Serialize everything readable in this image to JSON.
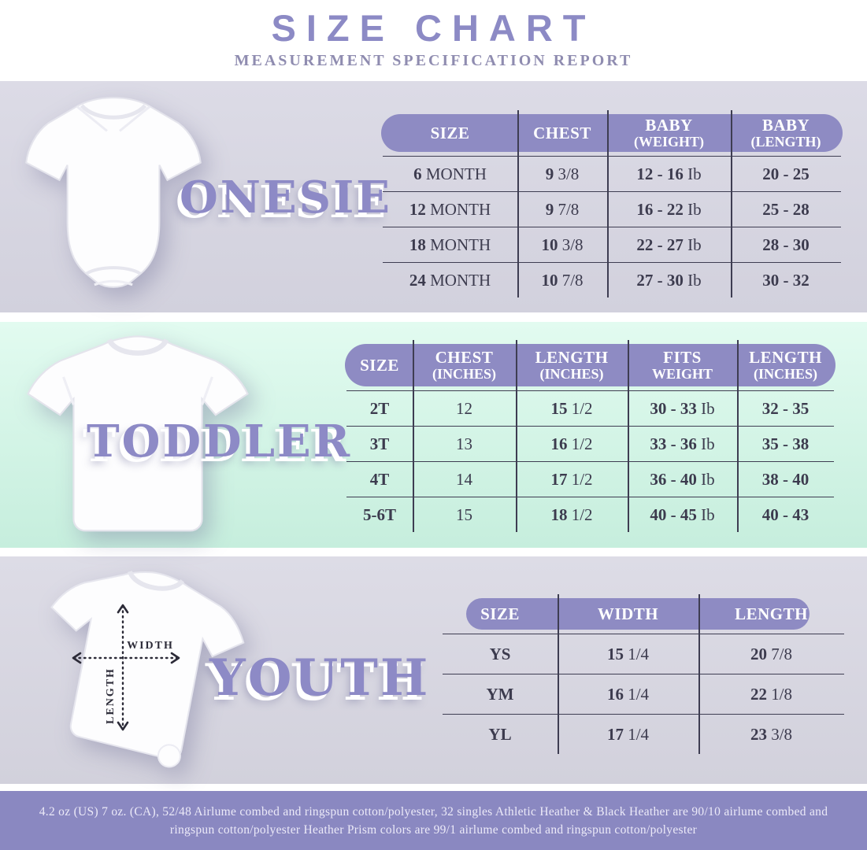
{
  "title": "SIZE CHART",
  "subtitle": "MEASUREMENT SPECIFICATION REPORT",
  "colors": {
    "accent_purple": "#8e8bc3",
    "lavender_band": "#d7d6e1",
    "mint_band": "#cdefdf",
    "footer_background": "#8a88c1",
    "table_text": "#3c3b4e"
  },
  "sections": {
    "onesie": {
      "label": "ONESIE",
      "table": {
        "headers": [
          [
            "SIZE"
          ],
          [
            "CHEST"
          ],
          [
            "BABY",
            "(WEIGHT)"
          ],
          [
            "BABY",
            "(LENGTH)"
          ]
        ],
        "rows": [
          [
            [
              "6",
              "MONTH"
            ],
            [
              "9",
              "3/8"
            ],
            [
              "12 - 16",
              "Ib"
            ],
            [
              "20 - 25",
              ""
            ]
          ],
          [
            [
              "12",
              "MONTH"
            ],
            [
              "9",
              "7/8"
            ],
            [
              "16 - 22",
              "Ib"
            ],
            [
              "25 - 28",
              ""
            ]
          ],
          [
            [
              "18",
              "MONTH"
            ],
            [
              "10",
              "3/8"
            ],
            [
              "22 - 27",
              "Ib"
            ],
            [
              "28 - 30",
              ""
            ]
          ],
          [
            [
              "24",
              "MONTH"
            ],
            [
              "10",
              "7/8"
            ],
            [
              "27 - 30",
              "Ib"
            ],
            [
              "30 - 32",
              ""
            ]
          ]
        ]
      }
    },
    "toddler": {
      "label": "TODDLER",
      "table": {
        "headers": [
          [
            "SIZE"
          ],
          [
            "CHEST",
            "(INCHES)"
          ],
          [
            "LENGTH",
            "(INCHES)"
          ],
          [
            "FITS",
            "WEIGHT"
          ],
          [
            "LENGTH",
            "(INCHES)"
          ]
        ],
        "rows": [
          [
            [
              "2T",
              ""
            ],
            [
              "",
              "12"
            ],
            [
              "15",
              "1/2"
            ],
            [
              "30 - 33",
              "Ib"
            ],
            [
              "32 - 35",
              ""
            ]
          ],
          [
            [
              "3T",
              ""
            ],
            [
              "",
              "13"
            ],
            [
              "16",
              "1/2"
            ],
            [
              "33 - 36",
              "Ib"
            ],
            [
              "35 - 38",
              ""
            ]
          ],
          [
            [
              "4T",
              ""
            ],
            [
              "",
              "14"
            ],
            [
              "17",
              "1/2"
            ],
            [
              "36 - 40",
              "Ib"
            ],
            [
              "38 - 40",
              ""
            ]
          ],
          [
            [
              "5-6T",
              ""
            ],
            [
              "",
              "15"
            ],
            [
              "18",
              "1/2"
            ],
            [
              "40 - 45",
              "Ib"
            ],
            [
              "40 - 43",
              ""
            ]
          ]
        ]
      }
    },
    "youth": {
      "label": "YOUTH",
      "table": {
        "headers": [
          [
            "SIZE"
          ],
          [
            "WIDTH"
          ],
          [
            "LENGTH"
          ]
        ],
        "rows": [
          [
            [
              "YS",
              ""
            ],
            [
              "15",
              "1/4"
            ],
            [
              "20",
              "7/8"
            ]
          ],
          [
            [
              "YM",
              ""
            ],
            [
              "16",
              "1/4"
            ],
            [
              "22",
              "1/8"
            ]
          ],
          [
            [
              "YL",
              ""
            ],
            [
              "17",
              "1/4"
            ],
            [
              "23",
              "3/8"
            ]
          ]
        ]
      }
    }
  },
  "youth_diagram": {
    "width_label": "WIDTH",
    "length_label": "LENGTH"
  },
  "footer": {
    "line1": "4.2 oz (US) 7 oz. (CA), 52/48 Airlume combed and ringspun cotton/polyester, 32 singles Athletic Heather & Black Heather are 90/10 airlume combed and",
    "line2": "ringspun cotton/polyester Heather Prism colors are 99/1 airlume combed and ringspun cotton/polyester"
  }
}
